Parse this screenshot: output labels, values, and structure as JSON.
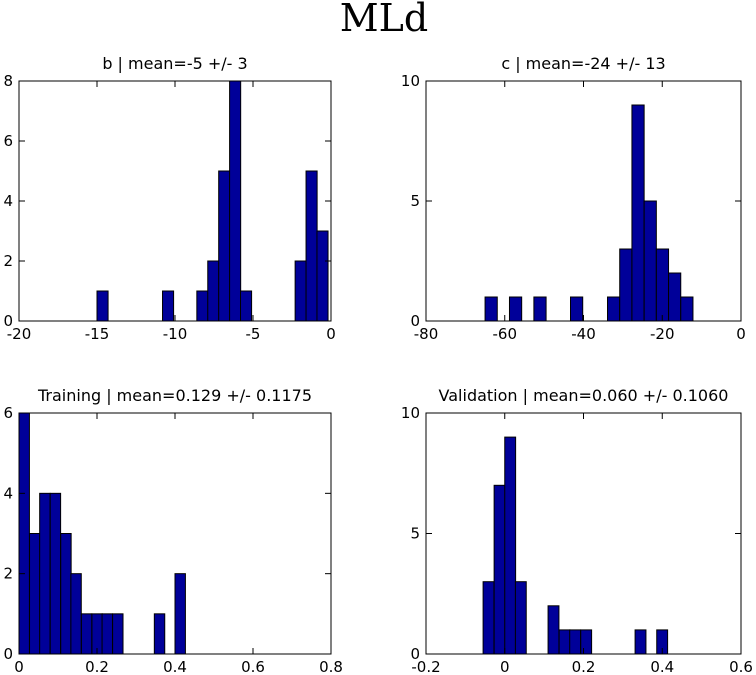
{
  "suptitle": "MLd",
  "colors": {
    "bar_fill": "#000099",
    "bar_edge": "#000000",
    "axis": "#000000"
  },
  "chart_data": [
    {
      "type": "bar",
      "title": "b | mean=-5 +/- 3",
      "xlim": [
        -20,
        0
      ],
      "ylim": [
        0,
        8
      ],
      "xticks": [
        -20,
        -15,
        -10,
        -5,
        0
      ],
      "xtick_labels": [
        "-20",
        "-15",
        "-10",
        "-5",
        "0"
      ],
      "yticks": [
        0,
        2,
        4,
        6,
        8
      ],
      "ytick_labels": [
        "0",
        "2",
        "4",
        "6",
        "8"
      ],
      "bin_width": 0.71,
      "bins": [
        {
          "x": -15.0,
          "count": 1
        },
        {
          "x": -10.8,
          "count": 1
        },
        {
          "x": -8.6,
          "count": 1
        },
        {
          "x": -7.9,
          "count": 2
        },
        {
          "x": -7.2,
          "count": 5
        },
        {
          "x": -6.5,
          "count": 8
        },
        {
          "x": -5.8,
          "count": 1
        },
        {
          "x": -2.3,
          "count": 2
        },
        {
          "x": -1.6,
          "count": 5
        },
        {
          "x": -0.9,
          "count": 3
        }
      ]
    },
    {
      "type": "bar",
      "title": "c | mean=-24 +/- 13",
      "xlim": [
        -80,
        0
      ],
      "ylim": [
        0,
        10
      ],
      "xticks": [
        -80,
        -60,
        -40,
        -20,
        0
      ],
      "xtick_labels": [
        "-80",
        "-60",
        "-40",
        "-20",
        "0"
      ],
      "yticks": [
        0,
        5,
        10
      ],
      "ytick_labels": [
        "0",
        "5",
        "10"
      ],
      "bin_width": 3.1,
      "bins": [
        {
          "x": -65.0,
          "count": 1
        },
        {
          "x": -58.8,
          "count": 1
        },
        {
          "x": -52.6,
          "count": 1
        },
        {
          "x": -43.3,
          "count": 1
        },
        {
          "x": -33.9,
          "count": 1
        },
        {
          "x": -30.8,
          "count": 3
        },
        {
          "x": -27.7,
          "count": 9
        },
        {
          "x": -24.6,
          "count": 5
        },
        {
          "x": -21.5,
          "count": 3
        },
        {
          "x": -18.4,
          "count": 2
        },
        {
          "x": -15.3,
          "count": 1
        }
      ]
    },
    {
      "type": "bar",
      "title": "Training | mean=0.129 +/- 0.1175",
      "xlim": [
        0,
        0.8
      ],
      "ylim": [
        0,
        6
      ],
      "xticks": [
        0,
        0.2,
        0.4,
        0.6,
        0.8
      ],
      "xtick_labels": [
        "0",
        "0.2",
        "0.4",
        "0.6",
        "0.8"
      ],
      "yticks": [
        0,
        2,
        4,
        6
      ],
      "ytick_labels": [
        "0",
        "2",
        "4",
        "6"
      ],
      "bin_width": 0.0267,
      "bins": [
        {
          "x": 0.0,
          "count": 6
        },
        {
          "x": 0.027,
          "count": 3
        },
        {
          "x": 0.053,
          "count": 4
        },
        {
          "x": 0.08,
          "count": 4
        },
        {
          "x": 0.107,
          "count": 3
        },
        {
          "x": 0.133,
          "count": 2
        },
        {
          "x": 0.16,
          "count": 1
        },
        {
          "x": 0.187,
          "count": 1
        },
        {
          "x": 0.213,
          "count": 1
        },
        {
          "x": 0.24,
          "count": 1
        },
        {
          "x": 0.347,
          "count": 1
        },
        {
          "x": 0.4,
          "count": 2
        }
      ]
    },
    {
      "type": "bar",
      "title": "Validation | mean=0.060 +/- 0.1060",
      "xlim": [
        -0.2,
        0.6
      ],
      "ylim": [
        0,
        10
      ],
      "xticks": [
        -0.2,
        0,
        0.2,
        0.4,
        0.6
      ],
      "xtick_labels": [
        "-0.2",
        "0",
        "0.2",
        "0.4",
        "0.6"
      ],
      "yticks": [
        0,
        5,
        10
      ],
      "ytick_labels": [
        "0",
        "5",
        "10"
      ],
      "bin_width": 0.0276,
      "bins": [
        {
          "x": -0.055,
          "count": 3
        },
        {
          "x": -0.027,
          "count": 7
        },
        {
          "x": 0.0,
          "count": 9
        },
        {
          "x": 0.027,
          "count": 3
        },
        {
          "x": 0.11,
          "count": 2
        },
        {
          "x": 0.138,
          "count": 1
        },
        {
          "x": 0.165,
          "count": 1
        },
        {
          "x": 0.193,
          "count": 1
        },
        {
          "x": 0.331,
          "count": 1
        },
        {
          "x": 0.386,
          "count": 1
        }
      ]
    }
  ]
}
